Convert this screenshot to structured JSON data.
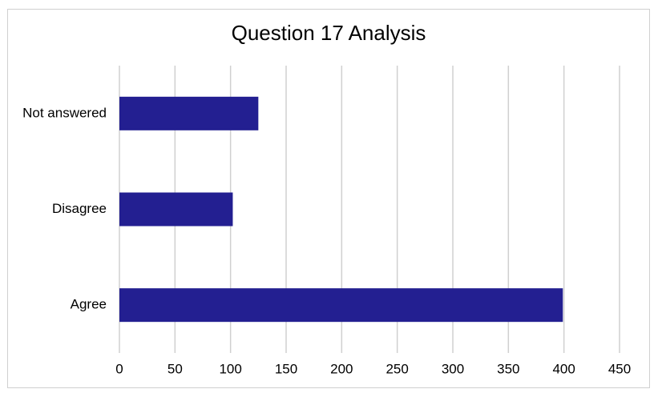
{
  "chart_data": {
    "type": "bar",
    "orientation": "horizontal",
    "title": "Question 17 Analysis",
    "categories": [
      "Not answered",
      "Disagree",
      "Agree"
    ],
    "values": [
      125,
      102,
      399
    ],
    "color": "#231f91",
    "xlim": [
      0,
      450
    ],
    "xticks": [
      0,
      50,
      100,
      150,
      200,
      250,
      300,
      350,
      400,
      450
    ],
    "grid": true
  }
}
